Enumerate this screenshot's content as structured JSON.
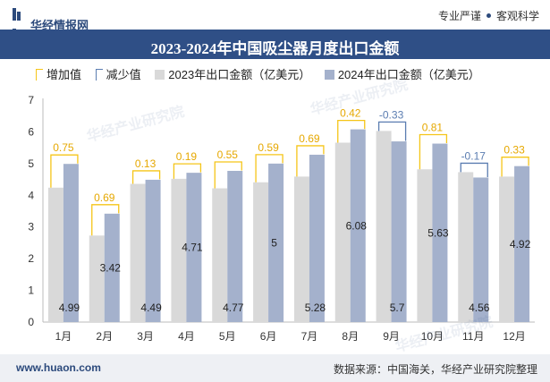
{
  "header": {
    "brand": "华经情报网",
    "slogan_left": "专业严谨",
    "slogan_right": "客观科学"
  },
  "footer": {
    "website": "www.huaon.com",
    "source": "数据来源：中国海关，华经产业研究院整理"
  },
  "watermark": "华经产业研究院",
  "colors": {
    "title_bg": "#2f4f86",
    "bar_2023": "#d9d9d9",
    "bar_2024": "#a4b1cc",
    "increase": "#f5c518",
    "decrease": "#5b7db1",
    "increase_text": "#e6a800",
    "decrease_text": "#5b7db1"
  },
  "chart_data": {
    "type": "bar",
    "title": "2023-2024年中国吸尘器月度出口金额",
    "categories": [
      "1月",
      "2月",
      "3月",
      "4月",
      "5月",
      "6月",
      "7月",
      "8月",
      "9月",
      "10月",
      "11月",
      "12月"
    ],
    "series": [
      {
        "name": "2023年出口金额（亿美元）",
        "values": [
          4.24,
          2.73,
          4.36,
          4.52,
          4.22,
          4.41,
          4.59,
          5.66,
          6.03,
          4.82,
          4.73,
          4.59
        ]
      },
      {
        "name": "2024年出口金额（亿美元）",
        "values": [
          4.99,
          3.42,
          4.49,
          4.71,
          4.77,
          5,
          5.28,
          6.08,
          5.7,
          5.63,
          4.56,
          4.92
        ]
      }
    ],
    "change": [
      0.75,
      0.69,
      0.13,
      0.19,
      0.55,
      0.59,
      0.69,
      0.42,
      -0.33,
      0.81,
      -0.17,
      0.33
    ],
    "change_labels": [
      "0.75",
      "0.69",
      "0.13",
      "0.19",
      "0.55",
      "0.59",
      "0.69",
      "0.42",
      "-0.33",
      "0.81",
      "-0.17",
      "0.33"
    ],
    "value_labels_2024": [
      "4.99",
      "3.42",
      "4.49",
      "4.71",
      "4.77",
      "5",
      "5.28",
      "6.08",
      "5.7",
      "5.63",
      "4.56",
      "4.92"
    ],
    "legend": [
      "增加值",
      "减少值",
      "2023年出口金额（亿美元）",
      "2024年出口金额（亿美元）"
    ],
    "legend_position": "top",
    "ylim": [
      0,
      7
    ],
    "yticks": [
      "0",
      "1",
      "2",
      "3",
      "4",
      "5",
      "6",
      "7"
    ],
    "grid": false
  }
}
